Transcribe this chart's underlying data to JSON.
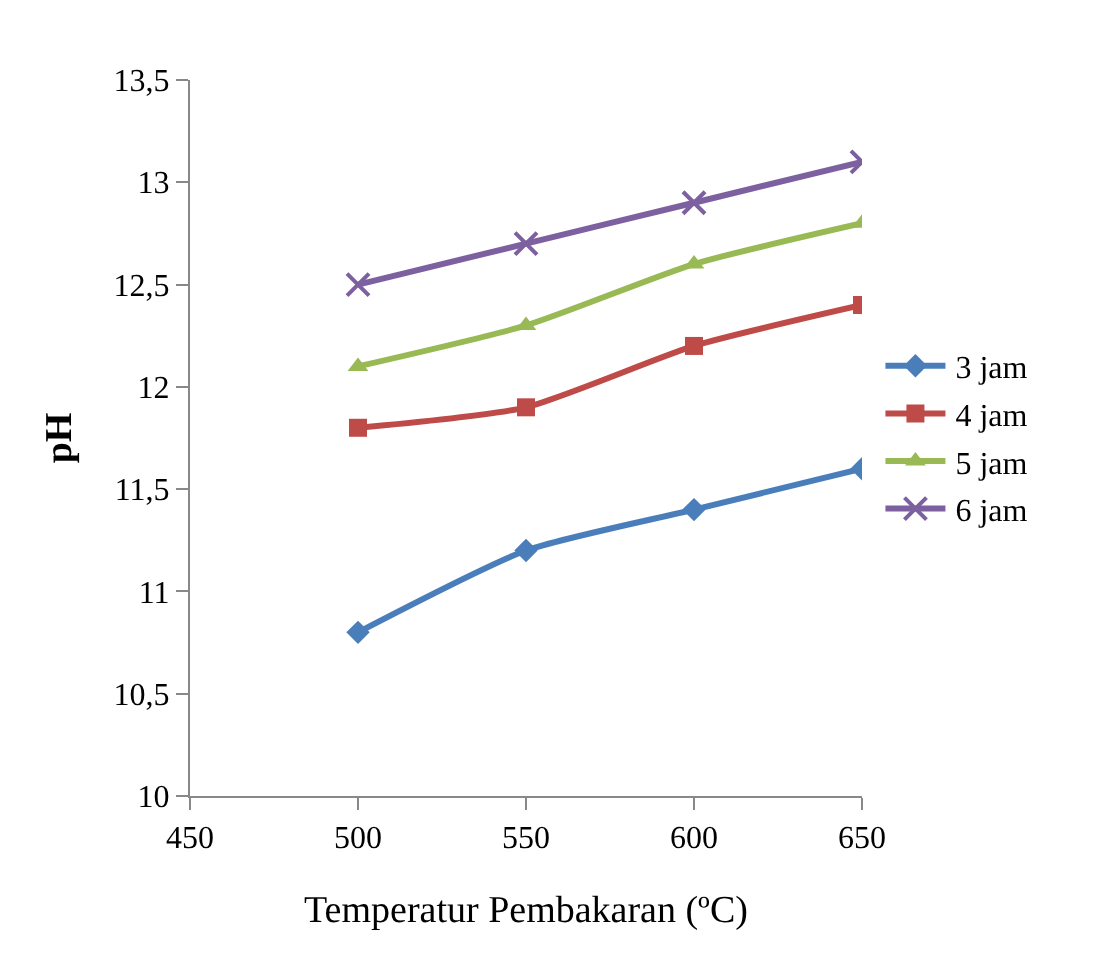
{
  "chart_data": {
    "type": "line",
    "xlabel": "Temperatur Pembakaran (ºC)",
    "ylabel": "pH",
    "x": [
      500,
      550,
      600,
      650
    ],
    "series": [
      {
        "name": "3 jam",
        "color": "#4a7ebb",
        "marker": "diamond",
        "values": [
          10.8,
          11.2,
          11.4,
          11.6
        ]
      },
      {
        "name": "4 jam",
        "color": "#be4b48",
        "marker": "square",
        "values": [
          11.8,
          11.9,
          12.2,
          12.4
        ]
      },
      {
        "name": "5 jam",
        "color": "#98b954",
        "marker": "triangle",
        "values": [
          12.1,
          12.3,
          12.6,
          12.8
        ]
      },
      {
        "name": "6 jam",
        "color": "#7d60a0",
        "marker": "cross",
        "values": [
          12.5,
          12.7,
          12.9,
          13.1
        ]
      }
    ],
    "xlim": [
      450,
      650
    ],
    "xticks": [
      450,
      500,
      550,
      600,
      650
    ],
    "ylim": [
      10,
      13.5
    ],
    "yticks": [
      10,
      {
        "value": 10.5,
        "label": "10,5"
      },
      11,
      {
        "value": 11.5,
        "label": "11,5"
      },
      12,
      {
        "value": 12.5,
        "label": "12,5"
      },
      13,
      {
        "value": 13.5,
        "label": "13,5"
      }
    ],
    "grid": false,
    "legend": "right",
    "line_style": "solid"
  }
}
